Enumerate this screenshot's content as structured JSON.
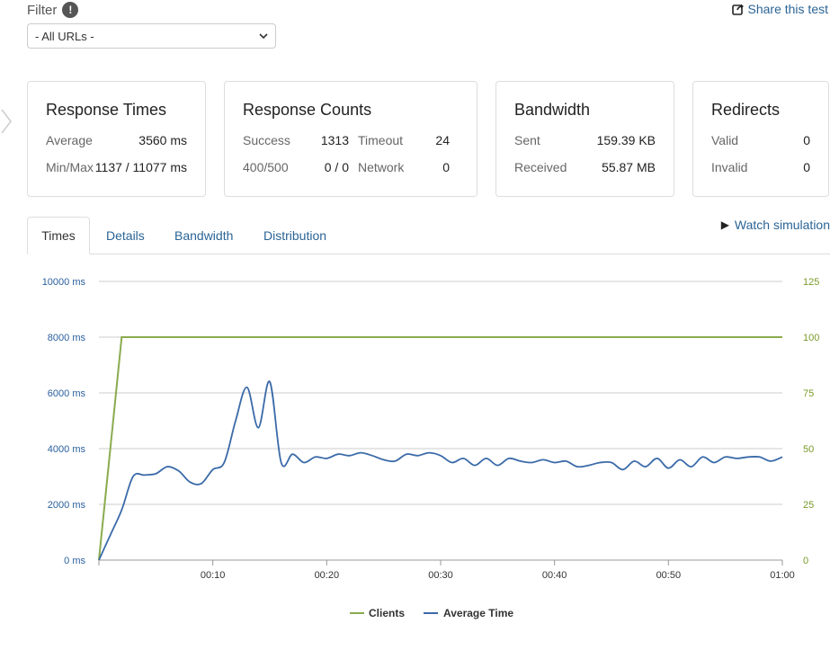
{
  "filter": {
    "label": "Filter",
    "help_icon": "!",
    "selected": "- All URLs -"
  },
  "share": {
    "label": "Share this test"
  },
  "cards": {
    "response_times": {
      "title": "Response Times",
      "avg_label": "Average",
      "avg_value": "3560 ms",
      "minmax_label": "Min/Max",
      "minmax_value": "1137 / 11077 ms"
    },
    "response_counts": {
      "title": "Response Counts",
      "success_label": "Success",
      "success_value": "1313",
      "timeout_label": "Timeout",
      "timeout_value": "24",
      "err_label": "400/500",
      "err_value": "0 / 0",
      "network_label": "Network",
      "network_value": "0"
    },
    "bandwidth": {
      "title": "Bandwidth",
      "sent_label": "Sent",
      "sent_value": "159.39 KB",
      "received_label": "Received",
      "received_value": "55.87 MB"
    },
    "redirects": {
      "title": "Redirects",
      "valid_label": "Valid",
      "valid_value": "0",
      "invalid_label": "Invalid",
      "invalid_value": "0"
    }
  },
  "tabs": [
    {
      "label": "Times"
    },
    {
      "label": "Details"
    },
    {
      "label": "Bandwidth"
    },
    {
      "label": "Distribution"
    }
  ],
  "watch": {
    "label": "Watch simulation"
  },
  "colors": {
    "clients": "#8aab4f",
    "avg": "#3a6aa8",
    "grid": "#cccccc"
  },
  "chart_data": {
    "type": "line",
    "y_left": {
      "ticks": [
        "10000 ms",
        "8000 ms",
        "6000 ms",
        "4000 ms",
        "2000 ms",
        "0 ms"
      ],
      "range": [
        0,
        10000
      ]
    },
    "y_right": {
      "ticks": [
        "125",
        "100",
        "75",
        "50",
        "25",
        "0"
      ],
      "range": [
        0,
        125
      ]
    },
    "x_ticks": [
      {
        "t": 10,
        "label": "00:10"
      },
      {
        "t": 20,
        "label": "00:20"
      },
      {
        "t": 30,
        "label": "00:30"
      },
      {
        "t": 40,
        "label": "00:40"
      },
      {
        "t": 50,
        "label": "00:50"
      },
      {
        "t": 60,
        "label": "01:00"
      }
    ],
    "x_range": [
      0,
      60
    ],
    "legend": {
      "clients": "Clients",
      "avg": "Average Time"
    },
    "series_clients": [
      [
        0,
        0
      ],
      [
        1,
        50
      ],
      [
        2,
        100
      ],
      [
        60,
        100
      ]
    ],
    "series_avg": [
      [
        0,
        0
      ],
      [
        1,
        900
      ],
      [
        2,
        1800
      ],
      [
        3,
        3000
      ],
      [
        4,
        3050
      ],
      [
        5,
        3100
      ],
      [
        6,
        3350
      ],
      [
        7,
        3200
      ],
      [
        8,
        2800
      ],
      [
        9,
        2750
      ],
      [
        10,
        3250
      ],
      [
        11,
        3500
      ],
      [
        12,
        5000
      ],
      [
        13,
        6200
      ],
      [
        14,
        4750
      ],
      [
        15,
        6400
      ],
      [
        16,
        3500
      ],
      [
        17,
        3800
      ],
      [
        18,
        3500
      ],
      [
        19,
        3700
      ],
      [
        20,
        3650
      ],
      [
        21,
        3800
      ],
      [
        22,
        3750
      ],
      [
        23,
        3850
      ],
      [
        24,
        3750
      ],
      [
        25,
        3600
      ],
      [
        26,
        3550
      ],
      [
        27,
        3800
      ],
      [
        28,
        3750
      ],
      [
        29,
        3850
      ],
      [
        30,
        3750
      ],
      [
        31,
        3500
      ],
      [
        32,
        3650
      ],
      [
        33,
        3400
      ],
      [
        34,
        3650
      ],
      [
        35,
        3400
      ],
      [
        36,
        3650
      ],
      [
        37,
        3550
      ],
      [
        38,
        3500
      ],
      [
        39,
        3600
      ],
      [
        40,
        3500
      ],
      [
        41,
        3550
      ],
      [
        42,
        3350
      ],
      [
        43,
        3400
      ],
      [
        44,
        3500
      ],
      [
        45,
        3500
      ],
      [
        46,
        3250
      ],
      [
        47,
        3550
      ],
      [
        48,
        3350
      ],
      [
        49,
        3650
      ],
      [
        50,
        3300
      ],
      [
        51,
        3600
      ],
      [
        52,
        3350
      ],
      [
        53,
        3700
      ],
      [
        54,
        3500
      ],
      [
        55,
        3700
      ],
      [
        56,
        3650
      ],
      [
        57,
        3700
      ],
      [
        58,
        3700
      ],
      [
        59,
        3550
      ],
      [
        60,
        3700
      ]
    ]
  }
}
